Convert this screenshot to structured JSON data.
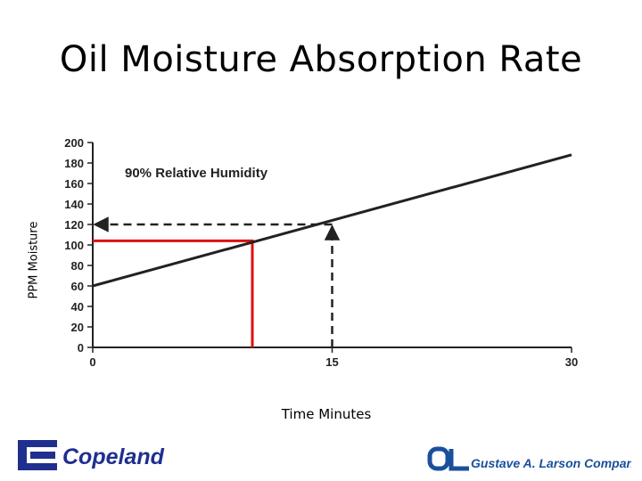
{
  "chart_data": {
    "type": "line",
    "title": "Oil Moisture Absorption Rate",
    "xlabel": "Time Minutes",
    "ylabel": "PPM Moisture",
    "annotation": "90% Relative Humidity",
    "xlim": [
      0,
      30
    ],
    "ylim": [
      0,
      200
    ],
    "x_ticks": [
      0,
      15,
      30
    ],
    "y_ticks": [
      0,
      20,
      40,
      60,
      80,
      100,
      120,
      140,
      160,
      180,
      200
    ],
    "series": [
      {
        "x": [
          0,
          30
        ],
        "y": [
          60,
          188
        ],
        "color": "#222222"
      }
    ],
    "guides": [
      {
        "style": "dashed-arrow",
        "color": "#222222",
        "x": 15,
        "y": 120
      },
      {
        "style": "solid",
        "color": "#dd1111",
        "x": 10,
        "y": 104
      }
    ]
  },
  "logos": {
    "left": "Copeland",
    "right": "Gustave A. Larson Company"
  },
  "colors": {
    "copeland_blue": "#1f2f8f",
    "larson_blue": "#1a4f9c",
    "guide_red": "#dd1111"
  }
}
